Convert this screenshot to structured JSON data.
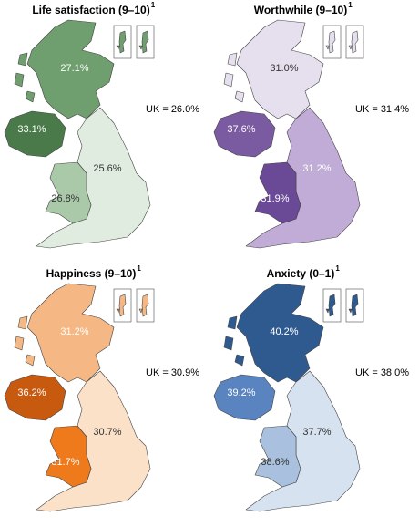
{
  "panels": [
    {
      "title": "Life satisfaction (9–10)",
      "superscript": "1",
      "uk_label": "UK = 26.0%",
      "regions": {
        "scotland": {
          "label": "27.1%",
          "color": "#6f9e6f",
          "text_color": "#ffffff"
        },
        "northern_ireland": {
          "label": "33.1%",
          "color": "#4a7a4a",
          "text_color": "#ffffff"
        },
        "england": {
          "label": "25.6%",
          "color": "#e0ece0",
          "text_color": "#333333"
        },
        "wales": {
          "label": "26.8%",
          "color": "#a9c9a9",
          "text_color": "#333333"
        }
      }
    },
    {
      "title": "Worthwhile (9–10)",
      "superscript": "1",
      "uk_label": "UK = 31.4%",
      "regions": {
        "scotland": {
          "label": "31.0%",
          "color": "#e6e0ee",
          "text_color": "#333333"
        },
        "northern_ireland": {
          "label": "37.6%",
          "color": "#7a5aa0",
          "text_color": "#ffffff"
        },
        "england": {
          "label": "31.2%",
          "color": "#c0acd6",
          "text_color": "#ffffff"
        },
        "wales": {
          "label": "31.9%",
          "color": "#6a4a96",
          "text_color": "#ffffff"
        }
      }
    },
    {
      "title": "Happiness (9–10)",
      "superscript": "1",
      "uk_label": "UK = 30.9%",
      "regions": {
        "scotland": {
          "label": "31.2%",
          "color": "#f5b885",
          "text_color": "#ffffff"
        },
        "northern_ireland": {
          "label": "36.2%",
          "color": "#c85a10",
          "text_color": "#ffffff"
        },
        "england": {
          "label": "30.7%",
          "color": "#fbe1c8",
          "text_color": "#333333"
        },
        "wales": {
          "label": "31.7%",
          "color": "#ee7a1c",
          "text_color": "#ffffff"
        }
      }
    },
    {
      "title": "Anxiety (0–1)",
      "superscript": "1",
      "uk_label": "UK = 38.0%",
      "regions": {
        "scotland": {
          "label": "40.2%",
          "color": "#2f5a8f",
          "text_color": "#ffffff"
        },
        "northern_ireland": {
          "label": "39.2%",
          "color": "#5a84bf",
          "text_color": "#ffffff"
        },
        "england": {
          "label": "37.7%",
          "color": "#d7e2f0",
          "text_color": "#333333"
        },
        "wales": {
          "label": "38.6%",
          "color": "#a9c0de",
          "text_color": "#333333"
        }
      }
    }
  ]
}
